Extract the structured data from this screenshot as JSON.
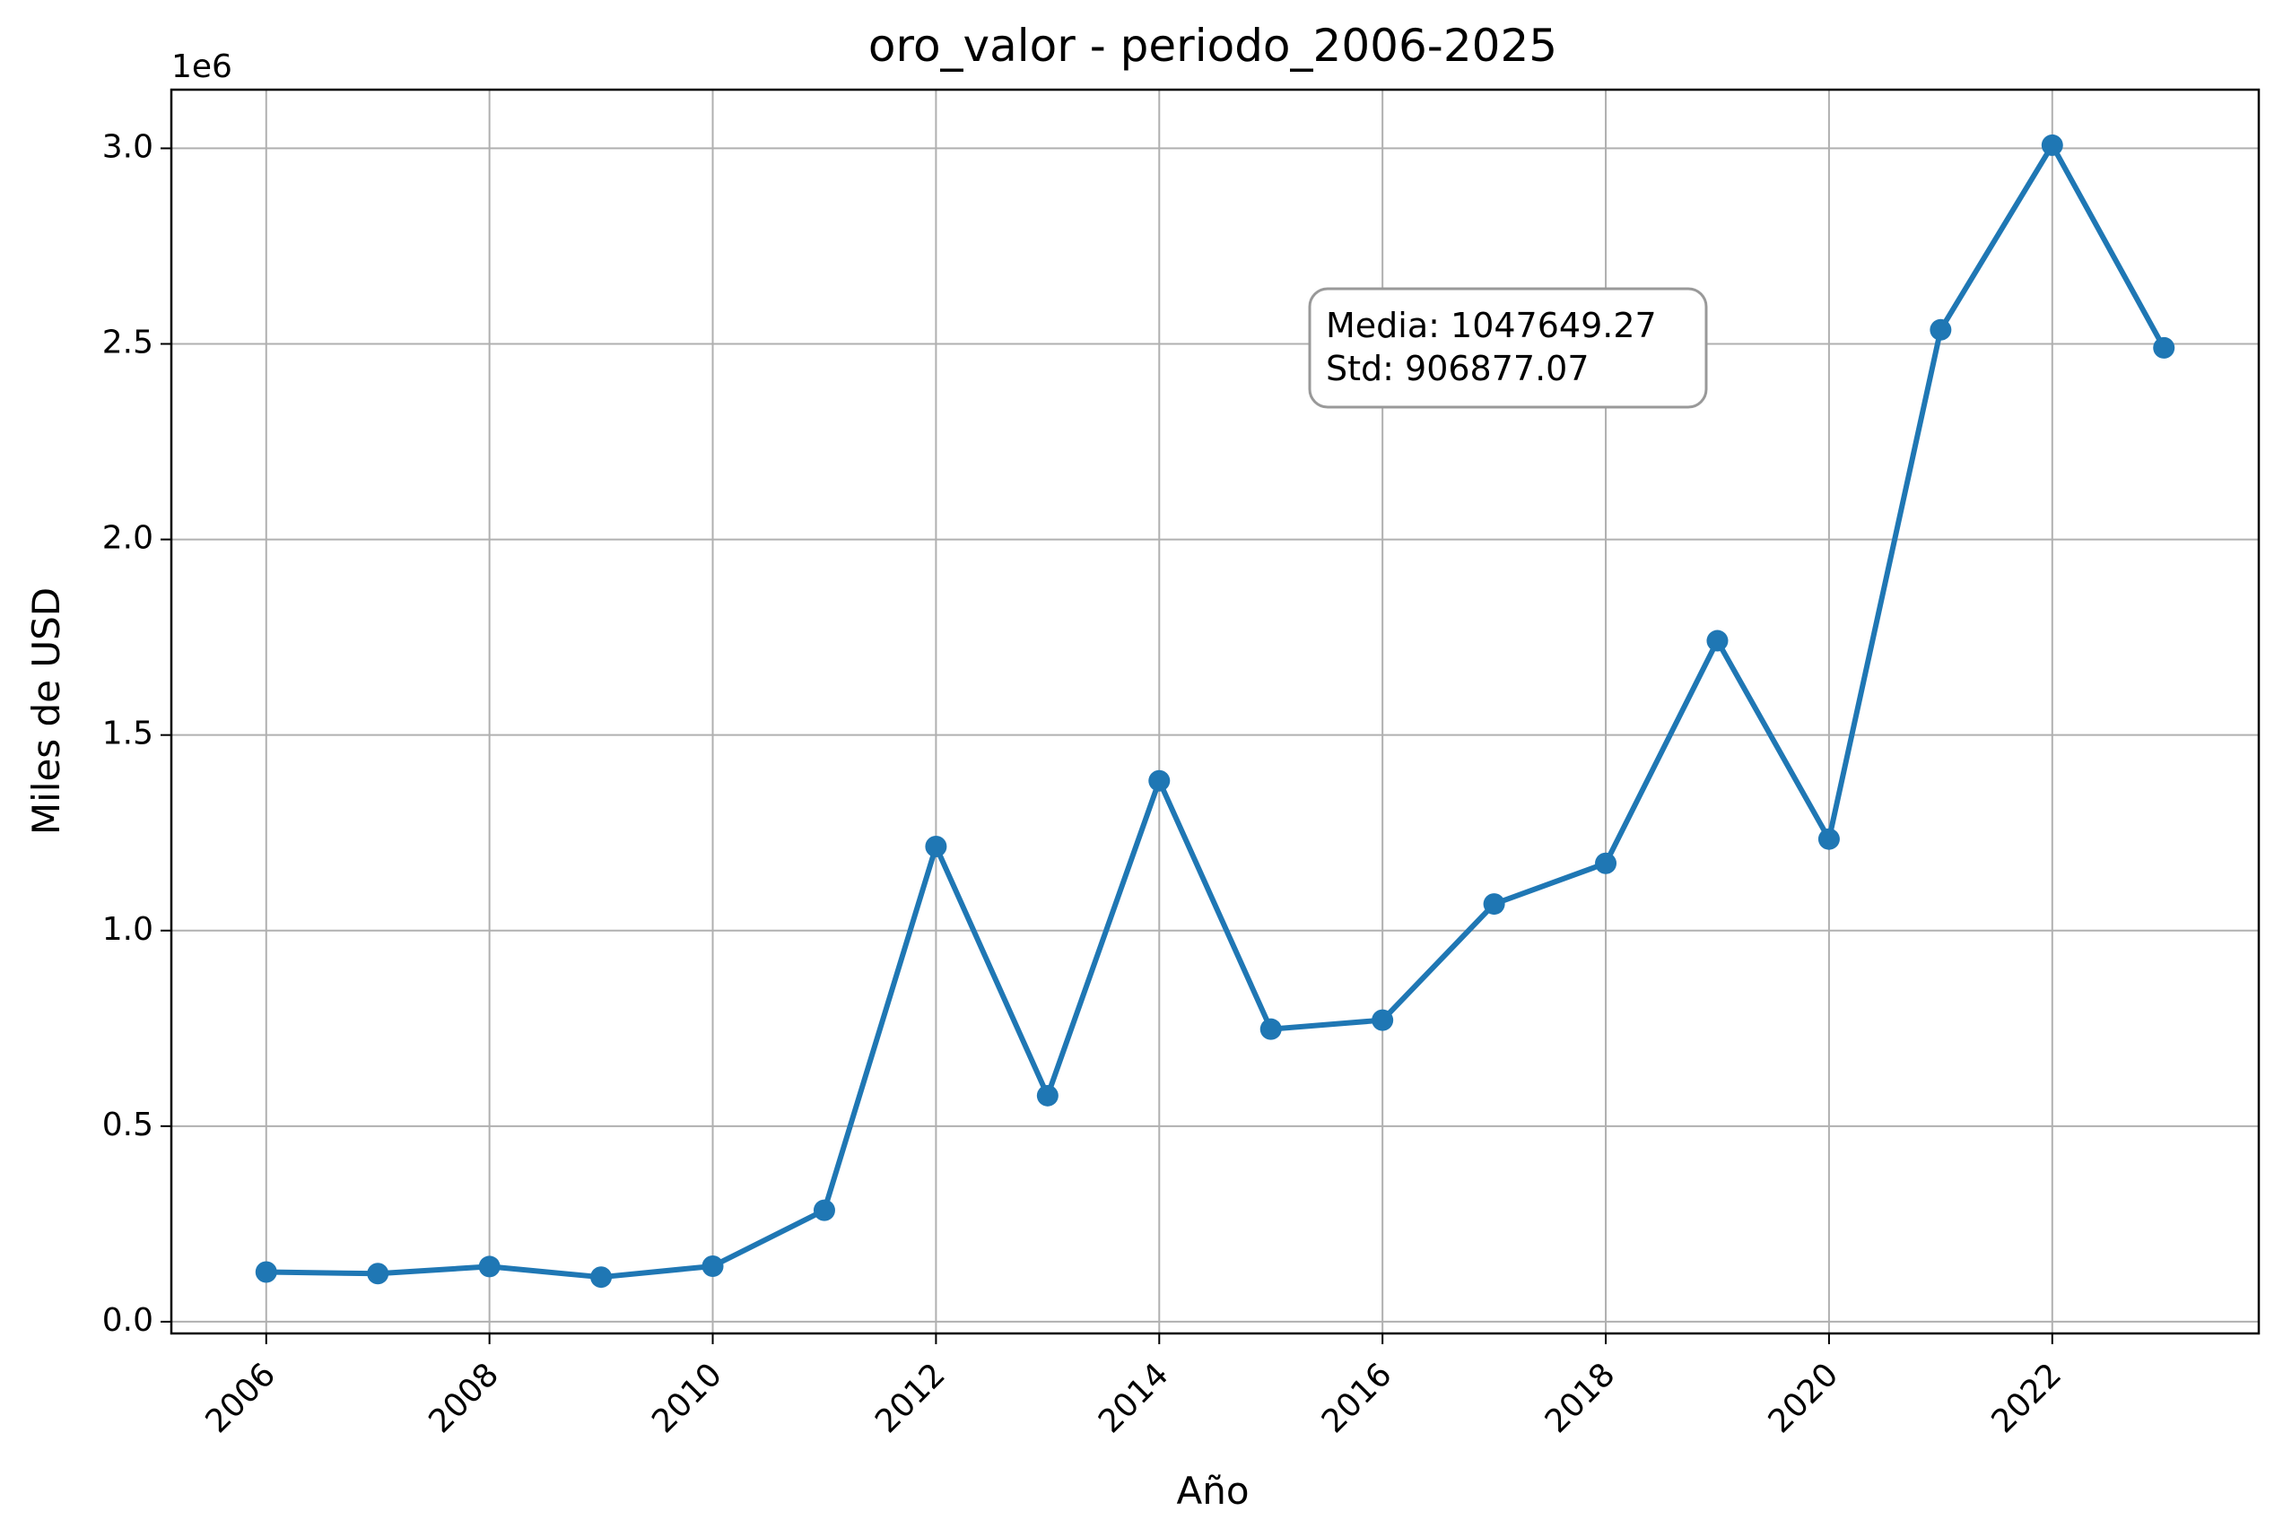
{
  "chart_data": {
    "type": "line",
    "title": "oro_valor - periodo_2006-2025",
    "xlabel": "Año",
    "ylabel": "Miles de USD",
    "y_offset_label": "1e6",
    "xlim": [
      2005.15,
      2023.85
    ],
    "ylim": [
      -0.03,
      3.15
    ],
    "y_scale_note": "values in units of 1e6",
    "x_ticks": [
      2006,
      2008,
      2010,
      2012,
      2014,
      2016,
      2018,
      2020,
      2022
    ],
    "x_tick_labels": [
      "2006",
      "2008",
      "2010",
      "2012",
      "2014",
      "2016",
      "2018",
      "2020",
      "2022"
    ],
    "y_ticks": [
      0.0,
      0.5,
      1.0,
      1.5,
      2.0,
      2.5,
      3.0
    ],
    "y_tick_labels": [
      "0.0",
      "0.5",
      "1.0",
      "1.5",
      "2.0",
      "2.5",
      "3.0"
    ],
    "grid": true,
    "series": [
      {
        "color": "#1f77b4",
        "x": [
          2006,
          2007,
          2008,
          2009,
          2010,
          2011,
          2012,
          2013,
          2014,
          2015,
          2016,
          2017,
          2018,
          2019,
          2020,
          2021,
          2022,
          2023
        ],
        "y": [
          0.127,
          0.123,
          0.141,
          0.114,
          0.142,
          0.285,
          1.215,
          0.578,
          1.383,
          0.748,
          0.771,
          1.068,
          1.172,
          1.741,
          1.234,
          2.536,
          3.008,
          2.49
        ]
      }
    ],
    "annotation": {
      "lines": [
        "Media: 1047649.27",
        "Std: 906877.07"
      ],
      "position": "upper-middle-right"
    }
  }
}
